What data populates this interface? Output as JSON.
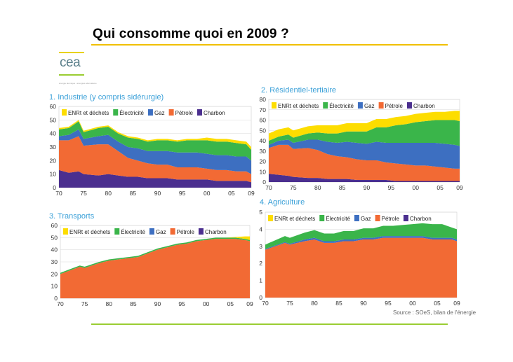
{
  "slide": {
    "title": "Qui consomme quoi en 2009 ?",
    "logo_text": "cea",
    "logo_tagline": "énergie atomique • énergies alternatives",
    "source": "Source : SOeS, bilan de l'énergie"
  },
  "colors": {
    "ENRt": "#fddd00",
    "Electricite": "#3ab54a",
    "Gaz": "#3d6fc1",
    "Petrole": "#f26a34",
    "Charbon": "#4b2f8f",
    "title_accent": "#f0c000",
    "footer_accent": "#9acd32",
    "chart_title": "#3aa0d8"
  },
  "chart_data": [
    {
      "type": "area",
      "stacked": true,
      "title": "1. Industrie (y compris sidérurgie)",
      "legend": [
        "ENRt et déchets",
        "Électricité",
        "Gaz",
        "Pétrole",
        "Charbon"
      ],
      "x": [
        1970,
        1972,
        1974,
        1975,
        1978,
        1980,
        1982,
        1984,
        1986,
        1988,
        1990,
        1992,
        1994,
        1996,
        1998,
        2000,
        2002,
        2004,
        2006,
        2008,
        2009
      ],
      "xticks": [
        "70",
        "75",
        "80",
        "85",
        "90",
        "95",
        "00",
        "05",
        "09"
      ],
      "xtick_values": [
        1970,
        1975,
        1980,
        1985,
        1990,
        1995,
        2000,
        2005,
        2009
      ],
      "ylim": [
        0,
        60
      ],
      "yticks": [
        0,
        10,
        20,
        30,
        40,
        50,
        60
      ],
      "series": [
        {
          "name": "Charbon",
          "values": [
            13,
            11,
            12,
            10,
            9,
            10,
            9,
            8,
            8,
            7,
            7,
            7,
            6,
            6,
            6,
            6,
            5,
            5,
            5,
            5,
            4
          ]
        },
        {
          "name": "Pétrole",
          "values": [
            22,
            24,
            26,
            21,
            23,
            22,
            18,
            14,
            12,
            11,
            10,
            10,
            9,
            9,
            9,
            8,
            8,
            8,
            7,
            7,
            6
          ]
        },
        {
          "name": "Gaz",
          "values": [
            3,
            4,
            5,
            5,
            6,
            7,
            7,
            8,
            9,
            9,
            10,
            10,
            11,
            11,
            11,
            11,
            11,
            11,
            11,
            11,
            10
          ]
        },
        {
          "name": "Électricité",
          "values": [
            5,
            5,
            6,
            5,
            6,
            6,
            6,
            7,
            7,
            7,
            8,
            8,
            8,
            9,
            9,
            10,
            10,
            10,
            10,
            9,
            8
          ]
        },
        {
          "name": "ENRt et déchets",
          "values": [
            1,
            1,
            1,
            1,
            1,
            1,
            1,
            1,
            1,
            1,
            1,
            1,
            1,
            1,
            1,
            2,
            2,
            2,
            2,
            2,
            2
          ]
        }
      ]
    },
    {
      "type": "area",
      "stacked": true,
      "title": "2. Résidentiel-tertiaire",
      "legend": [
        "ENRt et déchets",
        "Électricité",
        "Gaz",
        "Pétrole",
        "Charbon"
      ],
      "x": [
        1970,
        1972,
        1974,
        1975,
        1978,
        1980,
        1982,
        1984,
        1986,
        1988,
        1990,
        1992,
        1994,
        1996,
        1998,
        2000,
        2002,
        2004,
        2006,
        2008,
        2009
      ],
      "xticks": [
        "70",
        "75",
        "80",
        "85",
        "90",
        "95",
        "00",
        "05",
        "09"
      ],
      "xtick_values": [
        1970,
        1975,
        1980,
        1985,
        1990,
        1995,
        2000,
        2005,
        2009
      ],
      "ylim": [
        0,
        80
      ],
      "yticks": [
        0,
        10,
        20,
        30,
        40,
        50,
        60,
        70,
        80
      ],
      "series": [
        {
          "name": "Charbon",
          "values": [
            8,
            7,
            6,
            5,
            4,
            4,
            3,
            3,
            3,
            2,
            2,
            2,
            2,
            1,
            1,
            1,
            1,
            1,
            1,
            1,
            1
          ]
        },
        {
          "name": "Pétrole",
          "values": [
            25,
            29,
            30,
            27,
            29,
            27,
            24,
            22,
            21,
            20,
            19,
            19,
            17,
            17,
            16,
            15,
            15,
            14,
            13,
            12,
            12
          ]
        },
        {
          "name": "Gaz",
          "values": [
            3,
            4,
            5,
            6,
            8,
            10,
            12,
            13,
            15,
            16,
            16,
            18,
            19,
            20,
            21,
            22,
            22,
            23,
            23,
            23,
            22
          ]
        },
        {
          "name": "Électricité",
          "values": [
            4,
            4,
            5,
            5,
            6,
            7,
            8,
            9,
            10,
            11,
            12,
            14,
            15,
            17,
            18,
            20,
            21,
            22,
            23,
            24,
            24
          ]
        },
        {
          "name": "ENRt et déchets",
          "values": [
            7,
            7,
            7,
            7,
            7,
            7,
            8,
            8,
            8,
            8,
            8,
            8,
            8,
            8,
            8,
            8,
            8,
            8,
            8,
            9,
            10
          ]
        }
      ]
    },
    {
      "type": "area",
      "stacked": true,
      "title": "3. Transports",
      "legend": [
        "ENRt et déchets",
        "Électricité",
        "Gaz",
        "Pétrole",
        "Charbon"
      ],
      "x": [
        1970,
        1972,
        1974,
        1975,
        1978,
        1980,
        1982,
        1984,
        1986,
        1988,
        1990,
        1992,
        1994,
        1996,
        1998,
        2000,
        2002,
        2004,
        2006,
        2008,
        2009
      ],
      "xticks": [
        "70",
        "75",
        "80",
        "85",
        "90",
        "95",
        "00",
        "05",
        "09"
      ],
      "xtick_values": [
        1970,
        1975,
        1980,
        1985,
        1990,
        1995,
        2000,
        2005,
        2009
      ],
      "ylim": [
        0,
        60
      ],
      "yticks": [
        0,
        10,
        20,
        30,
        40,
        50,
        60
      ],
      "series": [
        {
          "name": "Charbon",
          "values": [
            0,
            0,
            0,
            0,
            0,
            0,
            0,
            0,
            0,
            0,
            0,
            0,
            0,
            0,
            0,
            0,
            0,
            0,
            0,
            0,
            0
          ]
        },
        {
          "name": "Pétrole",
          "values": [
            20,
            23,
            26,
            25,
            29,
            31,
            32,
            33,
            34,
            37,
            40,
            42,
            44,
            45,
            47,
            48,
            49,
            49,
            49,
            48,
            47
          ]
        },
        {
          "name": "Gaz",
          "values": [
            0,
            0,
            0,
            0,
            0,
            0,
            0,
            0,
            0,
            0,
            0,
            0,
            0,
            0,
            0,
            0,
            0,
            0,
            0,
            0,
            0
          ]
        },
        {
          "name": "Électricité",
          "values": [
            1,
            1,
            1,
            1,
            1,
            1,
            1,
            1,
            1,
            1,
            1,
            1,
            1,
            1,
            1,
            1,
            1,
            1,
            1,
            1,
            1
          ]
        },
        {
          "name": "ENRt et déchets",
          "values": [
            0,
            0,
            0,
            0,
            0,
            0,
            0,
            0,
            0,
            0,
            0,
            0,
            0,
            0,
            0,
            0,
            0,
            0,
            0.5,
            2,
            3
          ]
        }
      ]
    },
    {
      "type": "area",
      "stacked": true,
      "title": "4. Agriculture",
      "legend": [
        "ENRt et déchets",
        "Électricité",
        "Gaz",
        "Pétrole",
        "Charbon"
      ],
      "x": [
        1970,
        1972,
        1974,
        1975,
        1978,
        1980,
        1982,
        1984,
        1986,
        1988,
        1990,
        1992,
        1994,
        1996,
        1998,
        2000,
        2002,
        2004,
        2006,
        2008,
        2009
      ],
      "xticks": [
        "70",
        "75",
        "80",
        "85",
        "90",
        "95",
        "00",
        "05",
        "09"
      ],
      "xtick_values": [
        1970,
        1975,
        1980,
        1985,
        1990,
        1995,
        2000,
        2005,
        2009
      ],
      "ylim": [
        0,
        5
      ],
      "yticks": [
        0,
        1,
        2,
        3,
        4,
        5
      ],
      "series": [
        {
          "name": "Charbon",
          "values": [
            0,
            0,
            0,
            0,
            0,
            0,
            0,
            0,
            0,
            0,
            0,
            0,
            0,
            0,
            0,
            0,
            0,
            0,
            0,
            0,
            0
          ]
        },
        {
          "name": "Pétrole",
          "values": [
            2.8,
            3.0,
            3.2,
            3.1,
            3.3,
            3.4,
            3.2,
            3.2,
            3.3,
            3.3,
            3.4,
            3.4,
            3.5,
            3.5,
            3.5,
            3.5,
            3.5,
            3.4,
            3.4,
            3.4,
            3.3
          ]
        },
        {
          "name": "Gaz",
          "values": [
            0.05,
            0.05,
            0.05,
            0.05,
            0.1,
            0.1,
            0.1,
            0.1,
            0.1,
            0.1,
            0.1,
            0.1,
            0.1,
            0.1,
            0.1,
            0.1,
            0.1,
            0.1,
            0.1,
            0.1,
            0.1
          ]
        },
        {
          "name": "Électricité",
          "values": [
            0.25,
            0.3,
            0.35,
            0.35,
            0.4,
            0.45,
            0.45,
            0.45,
            0.5,
            0.5,
            0.55,
            0.55,
            0.6,
            0.6,
            0.65,
            0.7,
            0.75,
            0.8,
            0.8,
            0.6,
            0.6
          ]
        },
        {
          "name": "ENRt et déchets",
          "values": [
            0,
            0,
            0,
            0,
            0,
            0,
            0,
            0,
            0,
            0,
            0,
            0,
            0,
            0,
            0,
            0,
            0,
            0,
            0,
            0,
            0
          ]
        }
      ]
    }
  ]
}
